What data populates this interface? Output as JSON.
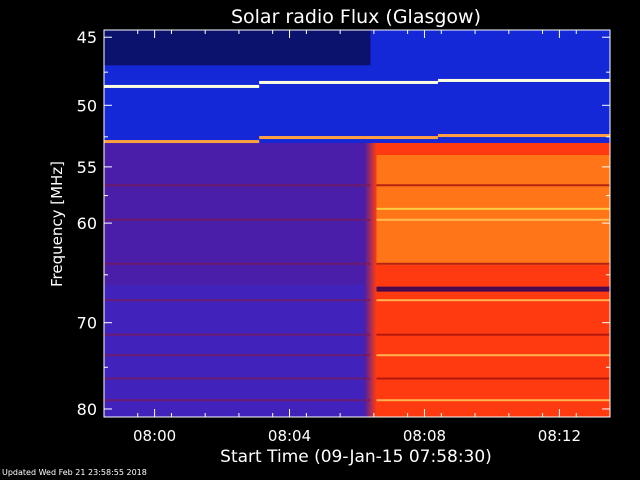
{
  "chart_data": {
    "type": "heatmap",
    "title": "Solar radio Flux (Glasgow)",
    "xlabel": "Start Time (09-Jan-15 07:58:30)",
    "ylabel": "Frequency [MHz]",
    "x_tick_labels": [
      "08:00",
      "08:04",
      "08:08",
      "08:12"
    ],
    "x_tick_minutes": [
      1.5,
      5.5,
      9.5,
      13.5
    ],
    "x_range_minutes": [
      0,
      15
    ],
    "y_tick_labels": [
      "45",
      "50",
      "55",
      "60",
      "70",
      "80"
    ],
    "y_tick_values": [
      45,
      50,
      55,
      60,
      70,
      80
    ],
    "y_range_mhz": [
      44.5,
      81
    ],
    "y_scale": "log",
    "y_direction": "increasing downward",
    "colors": {
      "background": "#000000",
      "quiet_low": "#4a1ea8",
      "quiet_high": "#1528d8",
      "burst": "#ff3a10",
      "burst_hot": "#ff8a1a",
      "interference": "#ffffe0"
    },
    "burst_onset_minutes": 7.9,
    "step_changes_minutes": [
      4.6,
      9.9
    ],
    "interference_lines_mhz": [
      48.3,
      52.6
    ]
  },
  "footer": {
    "updated": "Updated Wed Feb 21 23:58:55 2018"
  }
}
